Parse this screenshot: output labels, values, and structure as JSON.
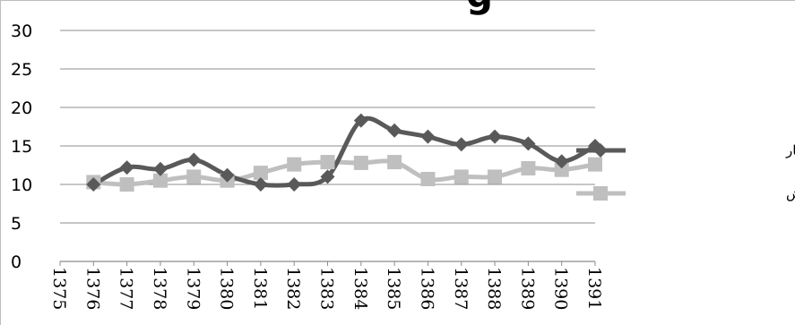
{
  "chart_data": {
    "type": "line",
    "title_fragment": "g",
    "x": [
      "1375",
      "1376",
      "1377",
      "1378",
      "1379",
      "1380",
      "1381",
      "1382",
      "1383",
      "1384",
      "1385",
      "1386",
      "1387",
      "1388",
      "1389",
      "1390",
      "1391"
    ],
    "ylim": [
      0,
      30
    ],
    "yticks": [
      "0",
      "5",
      "10",
      "15",
      "20",
      "25",
      "30"
    ],
    "grid": true,
    "legend_position": "right",
    "series": [
      {
        "name": "داده های مرکز آمار",
        "color": "#595959",
        "marker": "diamond",
        "values": [
          null,
          10.0,
          12.2,
          12.0,
          13.2,
          11.2,
          10.0,
          10.0,
          11.0,
          18.3,
          17.0,
          16.2,
          15.2,
          16.2,
          15.3,
          13.0,
          15.0
        ]
      },
      {
        "name": "داده های پژوهش",
        "color": "#bfbfbf",
        "marker": "square",
        "values": [
          null,
          10.3,
          10.0,
          10.5,
          11.0,
          10.5,
          11.5,
          12.6,
          12.9,
          12.8,
          12.9,
          10.7,
          11.0,
          11.0,
          12.1,
          11.9,
          12.6
        ]
      }
    ]
  }
}
